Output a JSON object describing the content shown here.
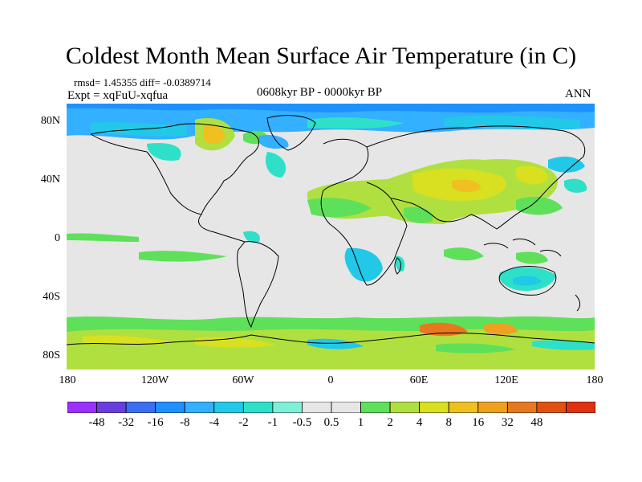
{
  "title": "Coldest Month Mean Surface Air Temperature (in C)",
  "stats": "rmsd= 1.45355 diff= -0.0389714",
  "experiment": "Expt = xqFuU-xqfua",
  "period": "0608kyr BP - 0000kyr BP",
  "season": "ANN",
  "lat_ticks": [
    "80N",
    "40N",
    "0",
    "40S",
    "80S"
  ],
  "lon_ticks": [
    "180",
    "120W",
    "60W",
    "0",
    "60E",
    "120E",
    "180"
  ],
  "colorbar": {
    "colors": [
      "#9b30ff",
      "#6a3de0",
      "#3a6df0",
      "#1e90ff",
      "#33b0ff",
      "#22c8e8",
      "#2ee0c8",
      "#7ff0d8",
      "#e6e6e6",
      "#e6e6e6",
      "#5fe05a",
      "#b0e040",
      "#d8e020",
      "#f0c020",
      "#f0a020",
      "#e87820",
      "#e05010",
      "#e03010"
    ],
    "labels": [
      "-48",
      "-32",
      "-16",
      "-8",
      "-4",
      "-2",
      "-1",
      "-0.5",
      "0.5",
      "1",
      "2",
      "4",
      "8",
      "16",
      "32",
      "48"
    ]
  }
}
